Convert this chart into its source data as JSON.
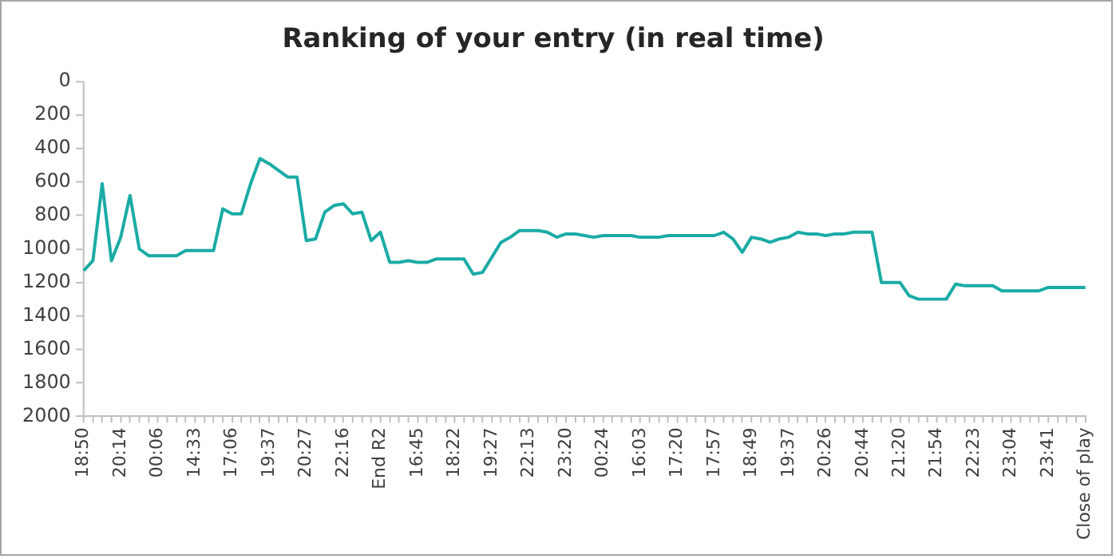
{
  "chart_data": {
    "type": "line",
    "title": "Ranking of your entry (in real time)",
    "categories": [
      "18:50",
      null,
      null,
      null,
      "20:14",
      null,
      null,
      null,
      "00:06",
      null,
      null,
      null,
      "14:33",
      null,
      null,
      null,
      "17:06",
      null,
      null,
      null,
      "19:37",
      null,
      null,
      null,
      "20:27",
      null,
      null,
      null,
      "22:16",
      null,
      null,
      null,
      "End R2",
      null,
      null,
      null,
      "16:45",
      null,
      null,
      null,
      "18:22",
      null,
      null,
      null,
      "19:27",
      null,
      null,
      null,
      "22:13",
      null,
      null,
      null,
      "23:20",
      null,
      null,
      null,
      "00:24",
      null,
      null,
      null,
      "16:03",
      null,
      null,
      null,
      "17:20",
      null,
      null,
      null,
      "17:57",
      null,
      null,
      null,
      "18:49",
      null,
      null,
      null,
      "19:37",
      null,
      null,
      null,
      "20:26",
      null,
      null,
      null,
      "20:44",
      null,
      null,
      null,
      "21:20",
      null,
      null,
      null,
      "21:54",
      null,
      null,
      null,
      "22:23",
      null,
      null,
      null,
      "23:04",
      null,
      null,
      null,
      "23:41",
      null,
      null,
      null,
      "Close of play"
    ],
    "series": [
      {
        "color": "#1aaba5",
        "values": [
          1130,
          1070,
          610,
          1070,
          930,
          680,
          1000,
          1040,
          1040,
          1040,
          1040,
          1010,
          1010,
          1010,
          1010,
          760,
          790,
          790,
          610,
          460,
          490,
          530,
          570,
          570,
          950,
          940,
          780,
          740,
          730,
          790,
          780,
          950,
          900,
          1080,
          1080,
          1070,
          1080,
          1080,
          1060,
          1060,
          1060,
          1060,
          1150,
          1140,
          1050,
          960,
          930,
          890,
          890,
          890,
          900,
          930,
          910,
          910,
          920,
          930,
          920,
          920,
          920,
          920,
          930,
          930,
          930,
          920,
          920,
          920,
          920,
          920,
          920,
          900,
          940,
          1020,
          930,
          940,
          960,
          940,
          930,
          900,
          910,
          910,
          920,
          910,
          910,
          900,
          900,
          900,
          1200,
          1200,
          1200,
          1280,
          1300,
          1300,
          1300,
          1300,
          1210,
          1220,
          1220,
          1220,
          1220,
          1250,
          1250,
          1250,
          1250,
          1250,
          1230,
          1230,
          1230,
          1230,
          1230
        ]
      }
    ],
    "ylim": [
      2000,
      0
    ],
    "yticks": [
      0,
      200,
      400,
      600,
      800,
      1000,
      1200,
      1400,
      1600,
      1800,
      2000
    ],
    "grid": false,
    "legend": false,
    "marker": "none",
    "line_style": "solid"
  }
}
